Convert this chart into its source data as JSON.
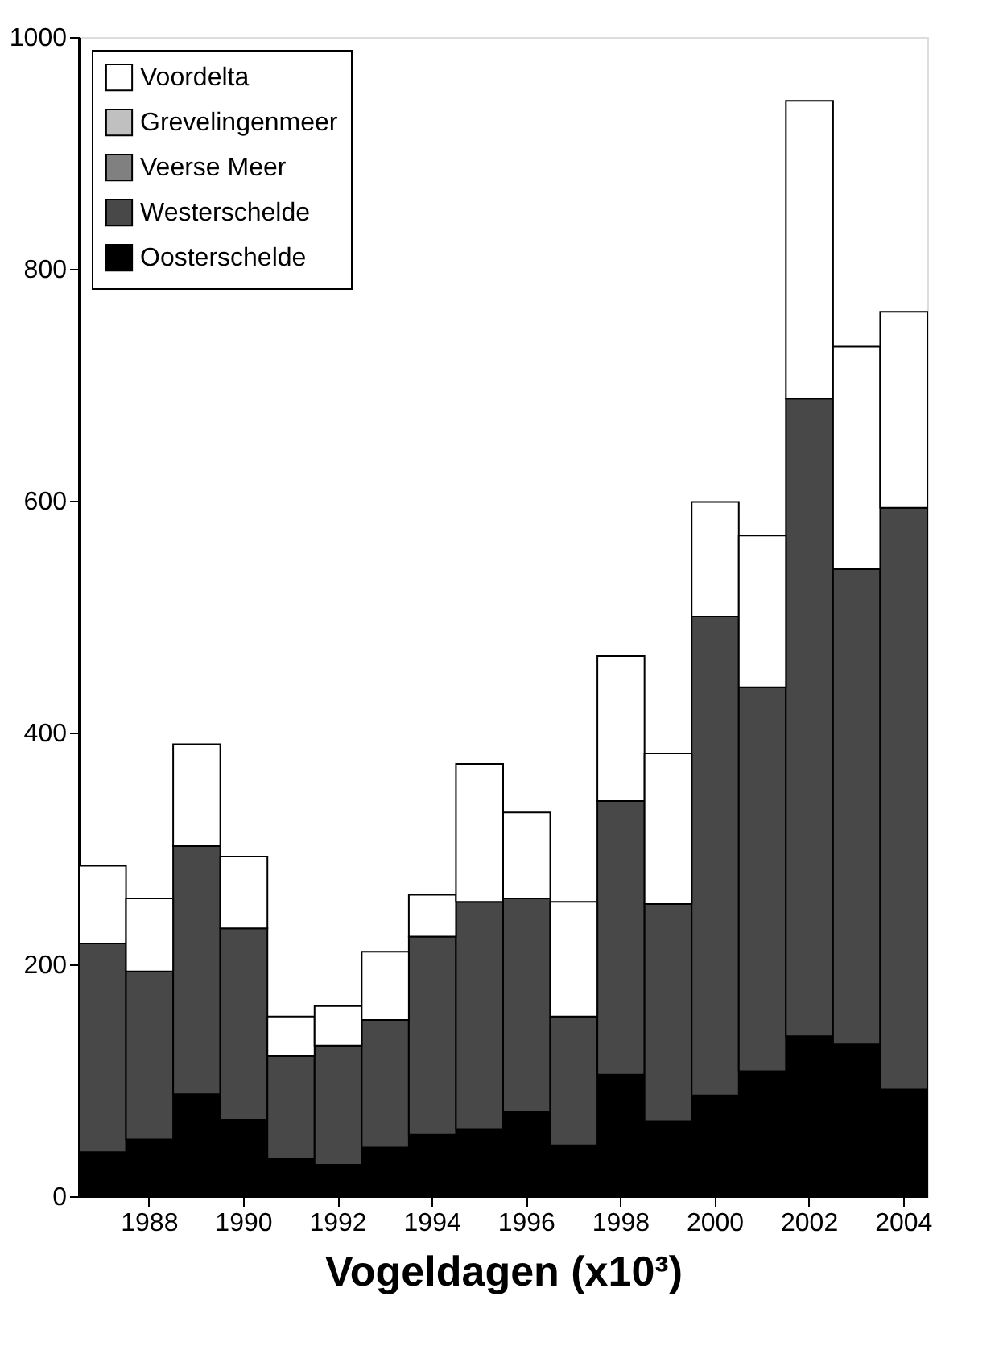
{
  "chart_data": {
    "type": "bar",
    "stacked": true,
    "xlabel": "Vogeldagen (x10³)",
    "categories": [
      null,
      "1988",
      null,
      "1990",
      null,
      "1992",
      null,
      "1994",
      null,
      "1996",
      null,
      "1998",
      null,
      "2000",
      null,
      "2002",
      null,
      "2004"
    ],
    "series": [
      {
        "name": "Oosterschelde",
        "color": "#000000",
        "values": [
          38,
          49,
          88,
          66,
          32,
          27,
          42,
          53,
          58,
          73,
          44,
          105,
          65,
          87,
          108,
          138,
          131,
          92
        ]
      },
      {
        "name": "Westerschelde",
        "color": "#484848",
        "values": [
          180,
          145,
          214,
          165,
          89,
          103,
          110,
          171,
          196,
          184,
          111,
          236,
          187,
          413,
          331,
          550,
          410,
          502
        ]
      },
      {
        "name": "Veerse Meer",
        "color": "#808080",
        "values": [
          0,
          0,
          0,
          0,
          0,
          0,
          0,
          0,
          0,
          0,
          0,
          0,
          0,
          0,
          0,
          0,
          0,
          0
        ]
      },
      {
        "name": "Grevelingenmeer",
        "color": "#c0c0c0",
        "values": [
          0,
          0,
          0,
          0,
          0,
          0,
          0,
          0,
          0,
          0,
          0,
          0,
          0,
          0,
          0,
          0,
          0,
          0
        ]
      },
      {
        "name": "Voordelta",
        "color": "#ffffff",
        "values": [
          67,
          63,
          88,
          62,
          34,
          34,
          59,
          36,
          119,
          74,
          99,
          125,
          130,
          99,
          131,
          257,
          192,
          169
        ]
      }
    ],
    "ylim": [
      0,
      1000
    ],
    "yticks": [
      0,
      200,
      400,
      600,
      800,
      1000
    ],
    "grid": false,
    "legend": "top left"
  }
}
